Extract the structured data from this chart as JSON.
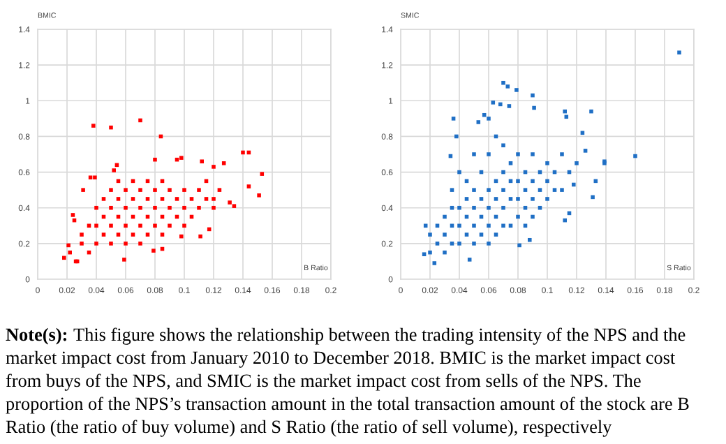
{
  "chart_data": [
    {
      "type": "scatter",
      "xlabel": "B Ratio",
      "ylabel": "BMIC",
      "xlim": [
        0,
        0.2
      ],
      "ylim": [
        0,
        1.4
      ],
      "xticks": [
        0,
        0.02,
        0.04,
        0.06,
        0.08,
        0.1,
        0.12,
        0.14,
        0.16,
        0.18,
        0.2
      ],
      "yticks": [
        0,
        0.2,
        0.4,
        0.6,
        0.8,
        1,
        1.2,
        1.4
      ],
      "grid": true,
      "marker": "square",
      "series": [
        {
          "color": "#ff0000",
          "x": [
            0.038,
            0.05,
            0.07,
            0.084,
            0.14,
            0.144,
            0.153,
            0.144,
            0.151,
            0.134,
            0.131,
            0.127,
            0.12,
            0.112,
            0.098,
            0.095,
            0.08,
            0.054,
            0.052,
            0.036,
            0.039,
            0.031,
            0.018,
            0.026,
            0.027,
            0.059,
            0.085,
            0.079,
            0.111,
            0.098,
            0.117,
            0.124,
            0.12,
            0.024,
            0.025,
            0.021,
            0.022,
            0.03,
            0.03,
            0.035,
            0.035,
            0.04,
            0.04,
            0.04,
            0.045,
            0.045,
            0.045,
            0.05,
            0.05,
            0.05,
            0.05,
            0.055,
            0.055,
            0.055,
            0.055,
            0.06,
            0.06,
            0.06,
            0.06,
            0.065,
            0.065,
            0.065,
            0.065,
            0.07,
            0.07,
            0.07,
            0.07,
            0.075,
            0.075,
            0.075,
            0.075,
            0.08,
            0.08,
            0.08,
            0.085,
            0.085,
            0.085,
            0.085,
            0.09,
            0.09,
            0.09,
            0.095,
            0.095,
            0.1,
            0.1,
            0.1,
            0.105,
            0.105,
            0.11,
            0.11,
            0.115,
            0.115,
            0.12
          ],
          "values": [
            0.86,
            0.85,
            0.89,
            0.8,
            0.71,
            0.71,
            0.59,
            0.52,
            0.47,
            0.41,
            0.43,
            0.65,
            0.63,
            0.66,
            0.68,
            0.67,
            0.67,
            0.64,
            0.61,
            0.57,
            0.57,
            0.5,
            0.12,
            0.1,
            0.1,
            0.11,
            0.17,
            0.16,
            0.24,
            0.24,
            0.28,
            0.5,
            0.45,
            0.36,
            0.33,
            0.19,
            0.15,
            0.2,
            0.25,
            0.3,
            0.15,
            0.2,
            0.3,
            0.4,
            0.25,
            0.35,
            0.45,
            0.2,
            0.3,
            0.4,
            0.5,
            0.25,
            0.35,
            0.45,
            0.55,
            0.2,
            0.3,
            0.4,
            0.5,
            0.25,
            0.35,
            0.45,
            0.55,
            0.2,
            0.3,
            0.4,
            0.5,
            0.25,
            0.35,
            0.45,
            0.55,
            0.3,
            0.4,
            0.5,
            0.25,
            0.35,
            0.45,
            0.55,
            0.3,
            0.4,
            0.5,
            0.35,
            0.45,
            0.3,
            0.4,
            0.5,
            0.35,
            0.45,
            0.4,
            0.5,
            0.45,
            0.55,
            0.4
          ]
        }
      ]
    },
    {
      "type": "scatter",
      "xlabel": "S Ratio",
      "ylabel": "SMIC",
      "xlim": [
        0,
        0.2
      ],
      "ylim": [
        0,
        1.4
      ],
      "xticks": [
        0,
        0.02,
        0.04,
        0.06,
        0.08,
        0.1,
        0.12,
        0.14,
        0.16,
        0.18,
        0.2
      ],
      "yticks": [
        0,
        0.2,
        0.4,
        0.6,
        0.8,
        1,
        1.2,
        1.4
      ],
      "grid": true,
      "marker": "square",
      "series": [
        {
          "color": "#1f6fc5",
          "x": [
            0.19,
            0.16,
            0.139,
            0.139,
            0.133,
            0.131,
            0.13,
            0.124,
            0.126,
            0.112,
            0.113,
            0.115,
            0.112,
            0.07,
            0.073,
            0.079,
            0.09,
            0.091,
            0.063,
            0.068,
            0.074,
            0.036,
            0.038,
            0.034,
            0.017,
            0.016,
            0.023,
            0.047,
            0.081,
            0.088,
            0.057,
            0.06,
            0.053,
            0.12,
            0.118,
            0.02,
            0.02,
            0.025,
            0.025,
            0.03,
            0.03,
            0.03,
            0.035,
            0.035,
            0.035,
            0.035,
            0.04,
            0.04,
            0.04,
            0.04,
            0.045,
            0.045,
            0.045,
            0.045,
            0.05,
            0.05,
            0.05,
            0.05,
            0.05,
            0.055,
            0.055,
            0.055,
            0.055,
            0.06,
            0.06,
            0.06,
            0.06,
            0.06,
            0.065,
            0.065,
            0.065,
            0.065,
            0.065,
            0.07,
            0.07,
            0.07,
            0.07,
            0.07,
            0.075,
            0.075,
            0.075,
            0.075,
            0.08,
            0.08,
            0.08,
            0.08,
            0.085,
            0.085,
            0.085,
            0.085,
            0.09,
            0.09,
            0.09,
            0.09,
            0.095,
            0.095,
            0.095,
            0.1,
            0.1,
            0.1,
            0.105,
            0.105,
            0.11,
            0.11,
            0.115
          ],
          "values": [
            1.27,
            0.69,
            0.66,
            0.65,
            0.55,
            0.46,
            0.94,
            0.82,
            0.72,
            0.94,
            0.91,
            0.37,
            0.33,
            1.1,
            1.08,
            1.06,
            1.03,
            0.96,
            0.99,
            0.98,
            0.97,
            0.9,
            0.8,
            0.69,
            0.3,
            0.14,
            0.09,
            0.11,
            0.19,
            0.22,
            0.92,
            0.9,
            0.88,
            0.65,
            0.53,
            0.15,
            0.25,
            0.2,
            0.3,
            0.15,
            0.25,
            0.35,
            0.2,
            0.3,
            0.4,
            0.5,
            0.2,
            0.3,
            0.4,
            0.6,
            0.25,
            0.35,
            0.45,
            0.55,
            0.2,
            0.3,
            0.4,
            0.5,
            0.7,
            0.25,
            0.35,
            0.45,
            0.6,
            0.2,
            0.3,
            0.4,
            0.5,
            0.7,
            0.25,
            0.35,
            0.45,
            0.55,
            0.8,
            0.3,
            0.4,
            0.5,
            0.6,
            0.75,
            0.3,
            0.45,
            0.55,
            0.65,
            0.35,
            0.45,
            0.55,
            0.7,
            0.3,
            0.4,
            0.5,
            0.6,
            0.35,
            0.45,
            0.55,
            0.7,
            0.4,
            0.5,
            0.6,
            0.45,
            0.55,
            0.65,
            0.5,
            0.6,
            0.5,
            0.7,
            0.6
          ]
        }
      ]
    },
    {
      "type": "other",
      "title": "Note(s):",
      "annotations": [
        "This figure shows the relationship between the trading intensity of the NPS and the market impact cost from January 2010 to December 2018. BMIC is the market impact cost from buys of the NPS, and SMIC is the market impact cost from sells of the NPS. The proportion of the NPS’s transaction amount in the total transaction amount of the stock are B Ratio (the ratio of buy volume) and S Ratio (the ratio of sell volume), respectively"
      ]
    }
  ]
}
